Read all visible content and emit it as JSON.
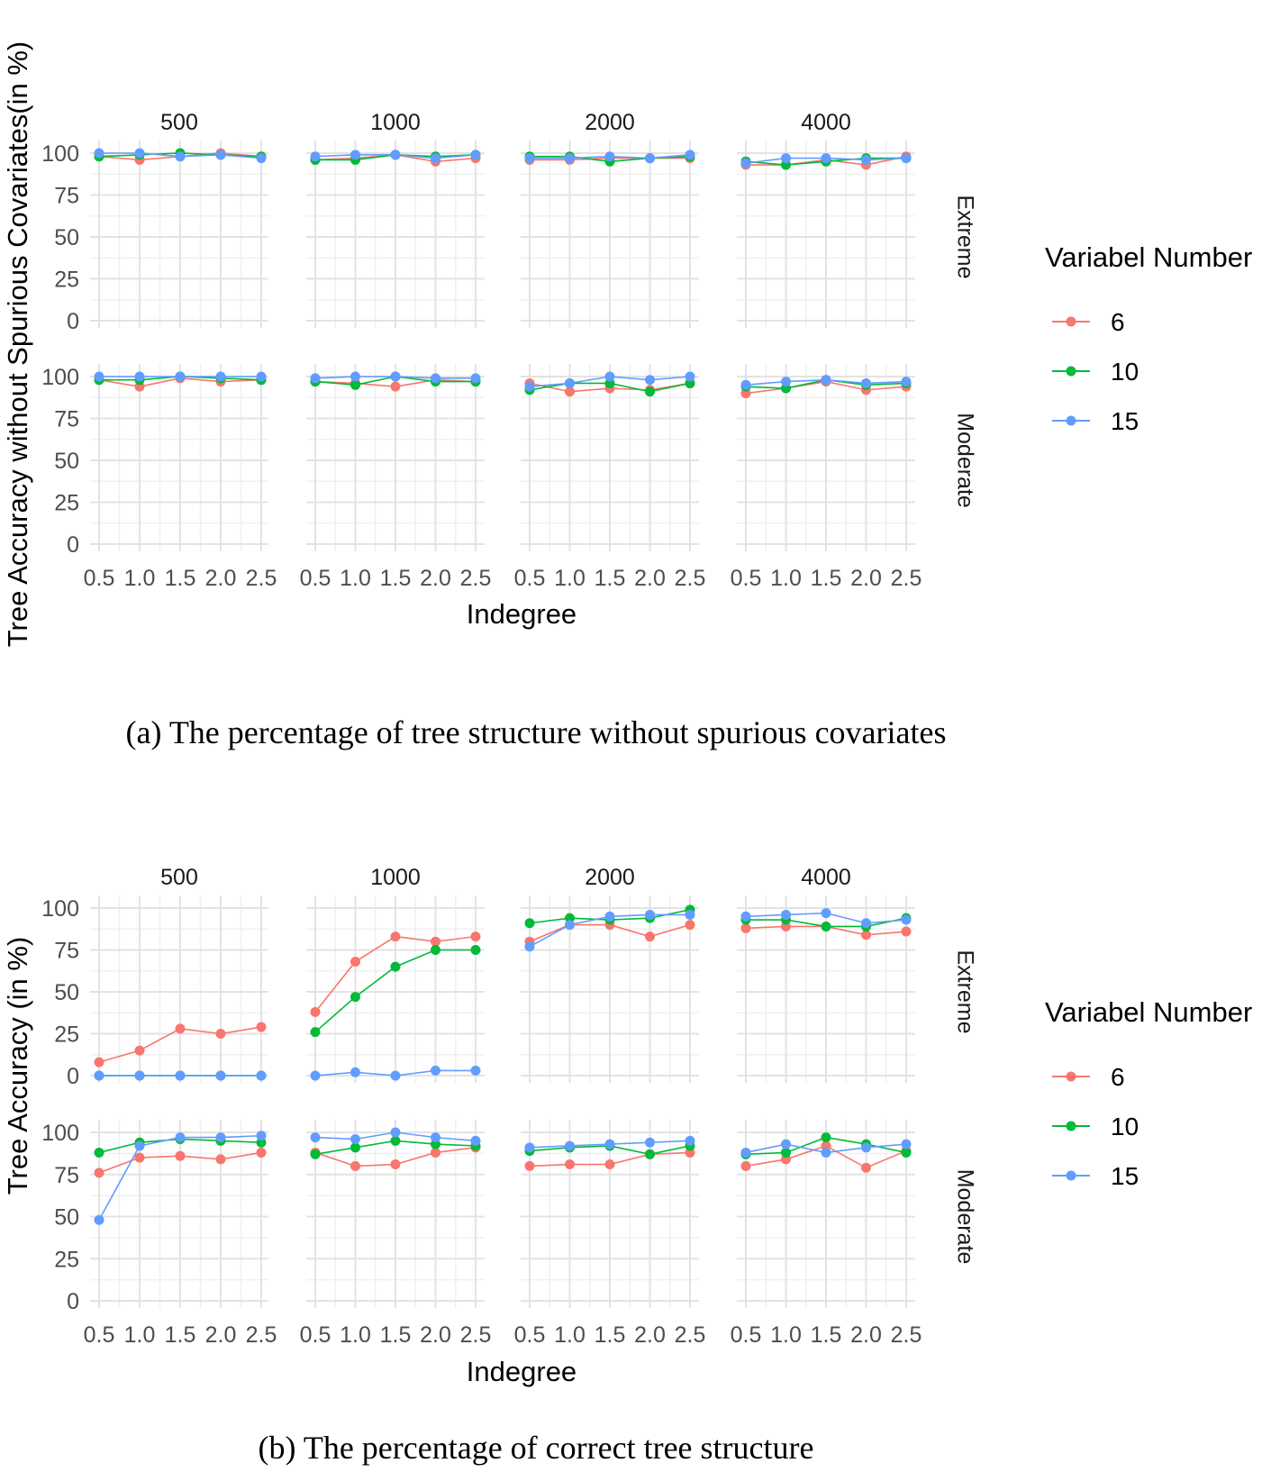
{
  "charts": [
    {
      "id": "a",
      "caption": "(a) The percentage of tree structure without spurious covariates",
      "chart_data": {
        "type": "line",
        "ylabel": "Tree Accuracy without Spurious Covariates(in %)",
        "xlabel": "Indegree",
        "x": [
          0.5,
          1.0,
          1.5,
          2.0,
          2.5
        ],
        "x_tick_labels": [
          "0.5",
          "1.0",
          "1.5",
          "2.0",
          "2.5"
        ],
        "y_ticks": [
          0,
          25,
          50,
          75,
          100
        ],
        "ylim": [
          0,
          100
        ],
        "column_facets": [
          "500",
          "1000",
          "2000",
          "4000"
        ],
        "row_facets": [
          "Extreme",
          "Moderate"
        ],
        "legend_title": "Variabel Number",
        "legend_placement": "right",
        "grid": true,
        "series_meta": [
          {
            "name": "6",
            "color": "#F8766D"
          },
          {
            "name": "10",
            "color": "#00BA38"
          },
          {
            "name": "15",
            "color": "#619CFF"
          }
        ],
        "panels": [
          {
            "col": "500",
            "row": "Extreme",
            "series": [
              [
                98,
                96,
                98,
                100,
                98
              ],
              [
                98,
                99,
                100,
                99,
                98
              ],
              [
                100,
                100,
                98,
                99,
                97
              ]
            ]
          },
          {
            "col": "1000",
            "row": "Extreme",
            "series": [
              [
                96,
                97,
                99,
                95,
                97
              ],
              [
                96,
                96,
                99,
                98,
                99
              ],
              [
                98,
                99,
                99,
                97,
                99
              ]
            ]
          },
          {
            "col": "2000",
            "row": "Extreme",
            "series": [
              [
                96,
                96,
                97,
                97,
                97
              ],
              [
                98,
                98,
                95,
                97,
                98
              ],
              [
                97,
                97,
                98,
                97,
                99
              ]
            ]
          },
          {
            "col": "4000",
            "row": "Extreme",
            "series": [
              [
                93,
                93,
                96,
                93,
                98
              ],
              [
                95,
                93,
                95,
                97,
                97
              ],
              [
                94,
                97,
                97,
                96,
                97
              ]
            ]
          },
          {
            "col": "500",
            "row": "Moderate",
            "series": [
              [
                98,
                94,
                99,
                97,
                98
              ],
              [
                98,
                98,
                100,
                99,
                98
              ],
              [
                100,
                100,
                100,
                100,
                100
              ]
            ]
          },
          {
            "col": "1000",
            "row": "Moderate",
            "series": [
              [
                97,
                96,
                94,
                98,
                97
              ],
              [
                97,
                95,
                100,
                97,
                97
              ],
              [
                99,
                100,
                100,
                99,
                99
              ]
            ]
          },
          {
            "col": "2000",
            "row": "Moderate",
            "series": [
              [
                96,
                91,
                93,
                92,
                96
              ],
              [
                92,
                96,
                96,
                91,
                96
              ],
              [
                94,
                96,
                100,
                98,
                100
              ]
            ]
          },
          {
            "col": "4000",
            "row": "Moderate",
            "series": [
              [
                90,
                93,
                97,
                92,
                94
              ],
              [
                94,
                93,
                98,
                95,
                96
              ],
              [
                95,
                97,
                98,
                96,
                97
              ]
            ]
          }
        ]
      }
    },
    {
      "id": "b",
      "caption": "(b) The percentage of correct tree structure",
      "chart_data": {
        "type": "line",
        "ylabel": "Tree Accuracy (in %)",
        "xlabel": "Indegree",
        "x": [
          0.5,
          1.0,
          1.5,
          2.0,
          2.5
        ],
        "x_tick_labels": [
          "0.5",
          "1.0",
          "1.5",
          "2.0",
          "2.5"
        ],
        "y_ticks": [
          0,
          25,
          50,
          75,
          100
        ],
        "ylim": [
          0,
          100
        ],
        "column_facets": [
          "500",
          "1000",
          "2000",
          "4000"
        ],
        "row_facets": [
          "Extreme",
          "Moderate"
        ],
        "legend_title": "Variabel Number",
        "legend_placement": "right",
        "grid": true,
        "series_meta": [
          {
            "name": "6",
            "color": "#F8766D"
          },
          {
            "name": "10",
            "color": "#00BA38"
          },
          {
            "name": "15",
            "color": "#619CFF"
          }
        ],
        "panels": [
          {
            "col": "500",
            "row": "Extreme",
            "series": [
              [
                8,
                15,
                28,
                25,
                29
              ],
              [
                0,
                0,
                0,
                0,
                0
              ],
              [
                0,
                0,
                0,
                0,
                0
              ]
            ]
          },
          {
            "col": "1000",
            "row": "Extreme",
            "series": [
              [
                38,
                68,
                83,
                80,
                83
              ],
              [
                26,
                47,
                65,
                75,
                75
              ],
              [
                0,
                2,
                0,
                3,
                3
              ]
            ]
          },
          {
            "col": "2000",
            "row": "Extreme",
            "series": [
              [
                80,
                90,
                90,
                83,
                90
              ],
              [
                91,
                94,
                93,
                94,
                99
              ],
              [
                77,
                90,
                95,
                96,
                96
              ]
            ]
          },
          {
            "col": "4000",
            "row": "Extreme",
            "series": [
              [
                88,
                89,
                89,
                84,
                86
              ],
              [
                93,
                93,
                89,
                89,
                94
              ],
              [
                95,
                96,
                97,
                91,
                93
              ]
            ]
          },
          {
            "col": "500",
            "row": "Moderate",
            "series": [
              [
                76,
                85,
                86,
                84,
                88
              ],
              [
                88,
                94,
                96,
                95,
                94
              ],
              [
                48,
                92,
                97,
                97,
                98
              ]
            ]
          },
          {
            "col": "1000",
            "row": "Moderate",
            "series": [
              [
                88,
                80,
                81,
                88,
                91
              ],
              [
                87,
                91,
                95,
                93,
                92
              ],
              [
                97,
                96,
                100,
                97,
                95
              ]
            ]
          },
          {
            "col": "2000",
            "row": "Moderate",
            "series": [
              [
                80,
                81,
                81,
                87,
                88
              ],
              [
                89,
                91,
                92,
                87,
                92
              ],
              [
                91,
                92,
                93,
                94,
                95
              ]
            ]
          },
          {
            "col": "4000",
            "row": "Moderate",
            "series": [
              [
                80,
                84,
                92,
                79,
                89
              ],
              [
                87,
                88,
                97,
                93,
                88
              ],
              [
                88,
                93,
                88,
                91,
                93
              ]
            ]
          }
        ]
      }
    }
  ]
}
